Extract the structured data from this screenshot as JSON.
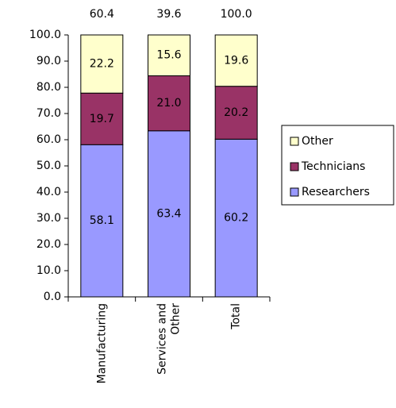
{
  "chart_data": {
    "type": "stacked_bar",
    "categories": [
      "Manufacturing",
      "Services and Other",
      "Total"
    ],
    "series": [
      {
        "name": "Researchers",
        "color": "#9999ff",
        "values": [
          58.1,
          63.4,
          60.2
        ],
        "value_labels": [
          "58.1",
          "63.4",
          "60.2"
        ]
      },
      {
        "name": "Technicians",
        "color": "#993366",
        "values": [
          19.7,
          21.0,
          20.2
        ],
        "value_labels": [
          "19.7",
          "21.0",
          "20.2"
        ]
      },
      {
        "name": "Other",
        "color": "#ffffcc",
        "values": [
          22.2,
          15.6,
          19.6
        ],
        "value_labels": [
          "22.2",
          "15.6",
          "19.6"
        ]
      }
    ],
    "annotations": {
      "values": [
        60.4,
        39.6,
        100
      ],
      "value_labels": [
        "60.4",
        "39.6",
        "100.0"
      ]
    },
    "ylim": [
      0,
      100
    ],
    "yticks": [
      {
        "value": 0,
        "label": "0.0"
      },
      {
        "value": 10,
        "label": "10.0"
      },
      {
        "value": 20,
        "label": "20.0"
      },
      {
        "value": 30,
        "label": "30.0"
      },
      {
        "value": 40,
        "label": "40.0"
      },
      {
        "value": 50,
        "label": "50.0"
      },
      {
        "value": 60,
        "label": "60.0"
      },
      {
        "value": 70,
        "label": "70.0"
      },
      {
        "value": 80,
        "label": "80.0"
      },
      {
        "value": 90,
        "label": "90.0"
      },
      {
        "value": 100,
        "label": "100.0"
      }
    ],
    "legend": "right"
  }
}
